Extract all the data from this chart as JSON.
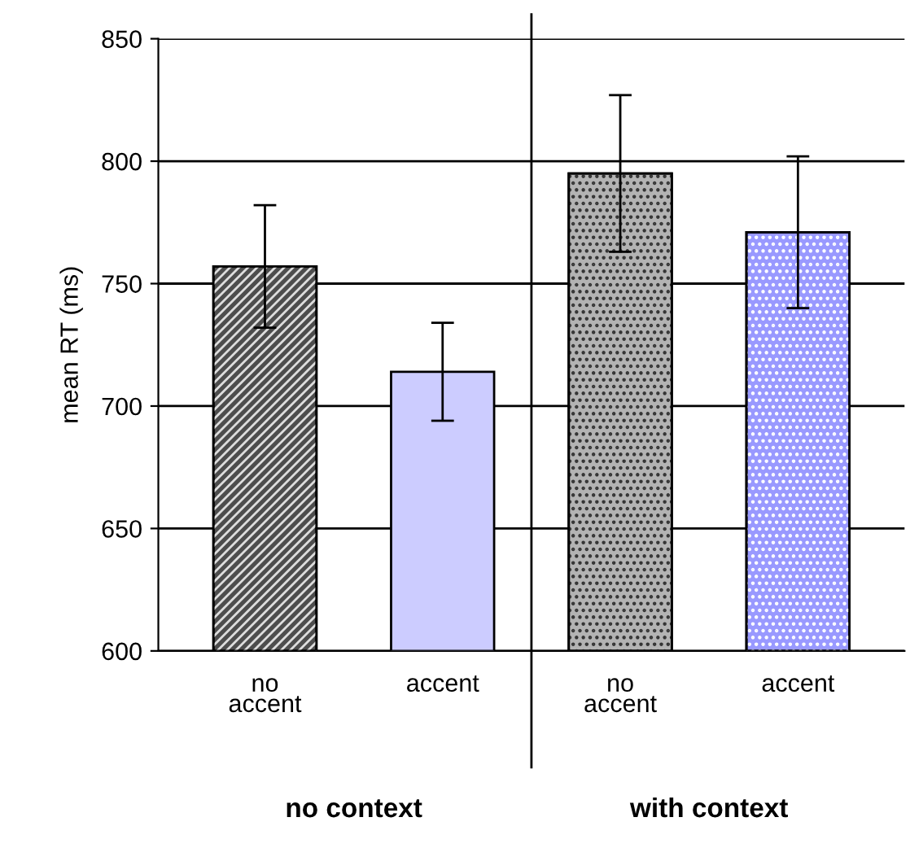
{
  "chart_data": {
    "type": "bar",
    "ylabel": "mean RT (ms)",
    "categories": [
      "no accent",
      "accent",
      "no accent",
      "accent"
    ],
    "values": [
      757,
      714,
      795,
      771
    ],
    "errors": [
      25,
      20,
      32,
      31
    ],
    "colors": [
      "#4d4d4d",
      "#ccccff",
      "#b3b3b3",
      "#9999ff"
    ],
    "ylim": [
      600,
      850
    ],
    "yticks": [
      600,
      650,
      700,
      750,
      800,
      850
    ],
    "grid": "y",
    "annotations": [
      "no context",
      "with context"
    ]
  }
}
